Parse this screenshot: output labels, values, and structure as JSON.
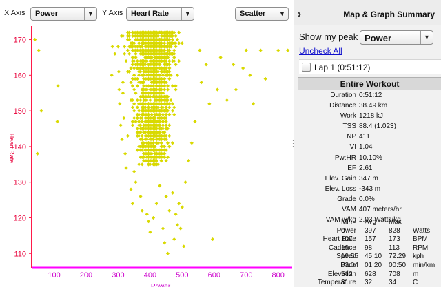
{
  "toolbar": {
    "x_axis_label": "X Axis",
    "x_axis_value": "Power",
    "y_axis_label": "Y Axis",
    "y_axis_value": "Heart Rate",
    "chart_type_value": "Scatter"
  },
  "panel": {
    "title": "Map & Graph Summary",
    "peak_label": "Show my peak",
    "peak_value": "Power",
    "uncheck_all": "Uncheck All",
    "lap_label": "Lap 1 (0:51:12)",
    "lap_checked": false,
    "section_title": "Entire Workout",
    "stats": [
      {
        "k": "Duration",
        "v": "0:51:12"
      },
      {
        "k": "Distance",
        "v": "38.49 km"
      },
      {
        "k": "Work",
        "v": "1218 kJ"
      },
      {
        "k": "TSS",
        "v": "88.4 (1.023)"
      },
      {
        "k": "NP",
        "v": "411"
      },
      {
        "k": "VI",
        "v": "1.04"
      },
      {
        "k": "Pw:HR",
        "v": "10.10%"
      },
      {
        "k": "EF",
        "v": "2.61"
      },
      {
        "k": "Elev. Gain",
        "v": "347 m"
      },
      {
        "k": "Elev. Loss",
        "v": "-343 m"
      },
      {
        "k": "Grade",
        "v": "0.0%"
      },
      {
        "k": "VAM",
        "v": "407 meters/hr"
      },
      {
        "k": "VAM w/kg",
        "v": "2.03 Watts/kg"
      }
    ],
    "table": {
      "header": [
        "",
        "Min",
        "Avg",
        "Max",
        ""
      ],
      "rows": [
        [
          "Power",
          "0",
          "397",
          "828",
          "Watts"
        ],
        [
          "Heart Rate",
          "107",
          "157",
          "173",
          "BPM"
        ],
        [
          "Cadence",
          "19",
          "98",
          "113",
          "RPM"
        ],
        [
          "Speed",
          "19.55",
          "45.10",
          "72.29",
          "kph"
        ],
        [
          "Pace",
          "03:04",
          "01:20",
          "00:50",
          "min/km"
        ],
        [
          "Elevation",
          "542",
          "628",
          "708",
          "m"
        ],
        [
          "Temperature",
          "31",
          "32",
          "34",
          "C"
        ]
      ]
    }
  },
  "colors": {
    "axis": "#ff00ff",
    "y_axis": "#ff1a4a",
    "point": "#d9d900",
    "x_tick": "#cc00cc",
    "y_tick": "#e8003a",
    "link": "#1111cc"
  },
  "chart_data": {
    "type": "scatter",
    "xlabel": "Power",
    "ylabel": "Heart Rate",
    "xlim": [
      30,
      835
    ],
    "ylim": [
      106,
      173
    ],
    "x_ticks": [
      "100",
      "200",
      "300",
      "400",
      "500",
      "600",
      "700",
      "800"
    ],
    "y_ticks": [
      "110",
      "120",
      "130",
      "140",
      "150",
      "160",
      "170"
    ],
    "marker": "diamond",
    "series": [
      {
        "points": [
          [
            40,
            170
          ],
          [
            52,
            167
          ],
          [
            60,
            150
          ],
          [
            48,
            138
          ],
          [
            112,
            157
          ],
          [
            110,
            147
          ],
          [
            282,
            168
          ],
          [
            290,
            166
          ],
          [
            300,
            168
          ],
          [
            280,
            160
          ],
          [
            302,
            161
          ],
          [
            303,
            156
          ],
          [
            305,
            152
          ],
          [
            308,
            146
          ],
          [
            312,
            142
          ],
          [
            318,
            148
          ],
          [
            322,
            138
          ],
          [
            325,
            134
          ],
          [
            330,
            143
          ],
          [
            340,
            128
          ],
          [
            345,
            124
          ],
          [
            350,
            133
          ],
          [
            355,
            130
          ],
          [
            360,
            139
          ],
          [
            370,
            126
          ],
          [
            375,
            122
          ],
          [
            380,
            138
          ],
          [
            390,
            121
          ],
          [
            395,
            119
          ],
          [
            400,
            116
          ],
          [
            410,
            120
          ],
          [
            420,
            124
          ],
          [
            430,
            129
          ],
          [
            440,
            117
          ],
          [
            445,
            113
          ],
          [
            450,
            126
          ],
          [
            460,
            122
          ],
          [
            470,
            127
          ],
          [
            475,
            114
          ],
          [
            480,
            121
          ],
          [
            485,
            118
          ],
          [
            490,
            124
          ],
          [
            495,
            117
          ],
          [
            500,
            123
          ],
          [
            505,
            112
          ],
          [
            510,
            130
          ],
          [
            520,
            136
          ],
          [
            530,
            141
          ],
          [
            540,
            147
          ],
          [
            455,
            110
          ],
          [
            555,
            167
          ],
          [
            560,
            158
          ],
          [
            575,
            163
          ],
          [
            585,
            152
          ],
          [
            595,
            114
          ],
          [
            610,
            156
          ],
          [
            620,
            165
          ],
          [
            640,
            153
          ],
          [
            660,
            163
          ],
          [
            668,
            156
          ],
          [
            690,
            162
          ],
          [
            700,
            167
          ],
          [
            712,
            160
          ],
          [
            722,
            152
          ],
          [
            745,
            167
          ],
          [
            760,
            159
          ],
          [
            800,
            167
          ],
          [
            830,
            167
          ]
        ],
        "dense_cluster": {
          "count": 1600,
          "power_mean": 410,
          "power_sd": 52,
          "hr_center": 161,
          "hr_range": [
            135,
            172
          ],
          "hr_shape": "concentrated_top"
        }
      }
    ]
  }
}
